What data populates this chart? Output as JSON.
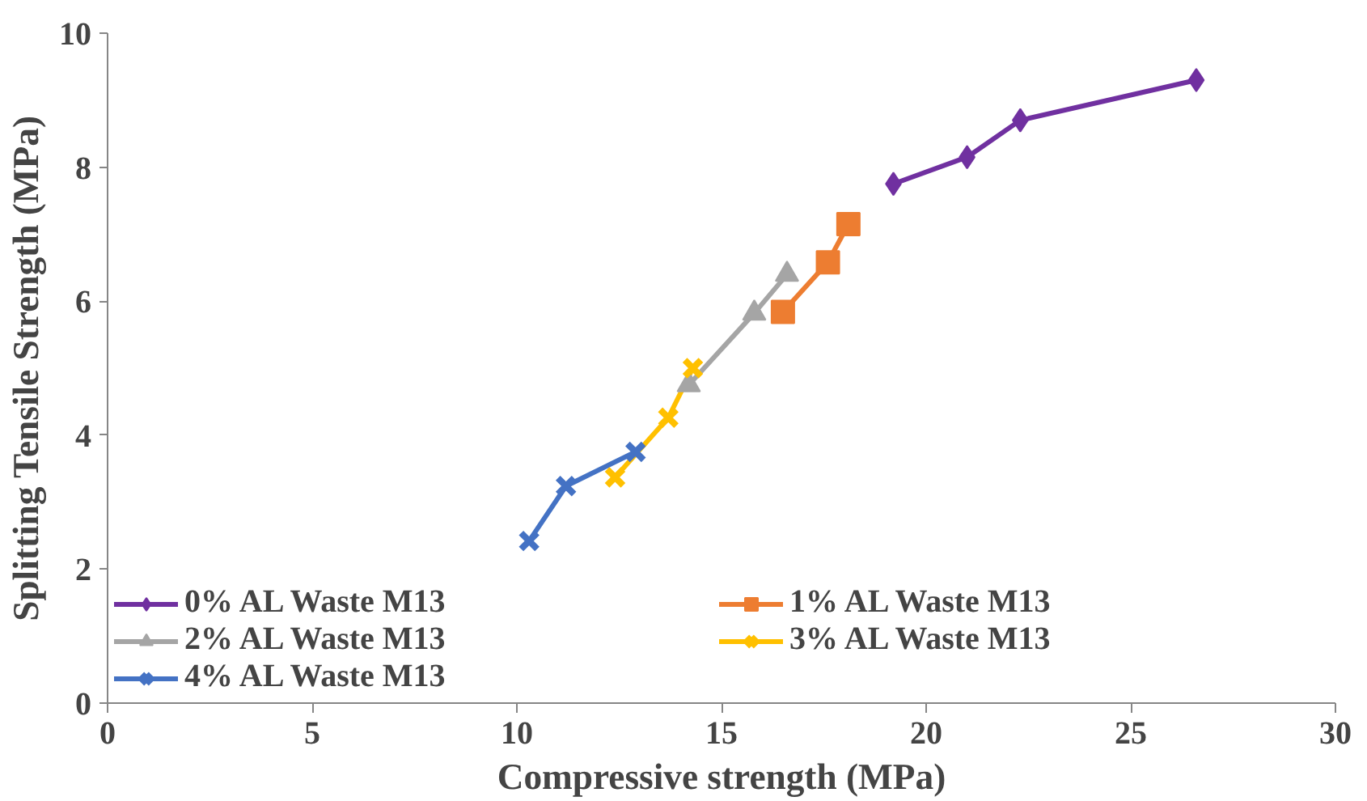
{
  "chart_data": {
    "type": "line",
    "xlabel": "Compressive strength (MPa)",
    "ylabel": "Splitting Tensile Strength (MPa)",
    "xlim": [
      0,
      30
    ],
    "xticks": [
      0,
      5,
      10,
      15,
      20,
      25,
      30
    ],
    "ylim": [
      0,
      10
    ],
    "yticks": [
      0,
      2,
      4,
      6,
      8,
      10
    ],
    "grid": false,
    "legend": "bottom left",
    "series": [
      {
        "name": "0% AL Waste M13",
        "color": "#7030a0",
        "marker": "diamond",
        "x": [
          19.2,
          21.0,
          22.3,
          26.6
        ],
        "values": [
          7.75,
          8.15,
          8.7,
          9.3
        ]
      },
      {
        "name": "1% AL Waste M13",
        "color": "#ed7d31",
        "marker": "square",
        "x": [
          16.5,
          17.6,
          18.1
        ],
        "values": [
          5.84,
          6.58,
          7.15
        ]
      },
      {
        "name": "2% AL Waste M13",
        "color": "#a5a5a5",
        "marker": "triangle",
        "x": [
          14.2,
          15.8,
          16.6
        ],
        "values": [
          4.75,
          5.82,
          6.4
        ]
      },
      {
        "name": "3% AL Waste M13",
        "color": "#ffc000",
        "marker": "cross",
        "x": [
          12.4,
          13.7,
          14.3
        ],
        "values": [
          3.37,
          4.26,
          5.0
        ]
      },
      {
        "name": "4% AL Waste M13",
        "color": "#4472c4",
        "marker": "cross",
        "x": [
          10.3,
          11.2,
          12.9
        ],
        "values": [
          2.42,
          3.24,
          3.75
        ]
      }
    ]
  }
}
